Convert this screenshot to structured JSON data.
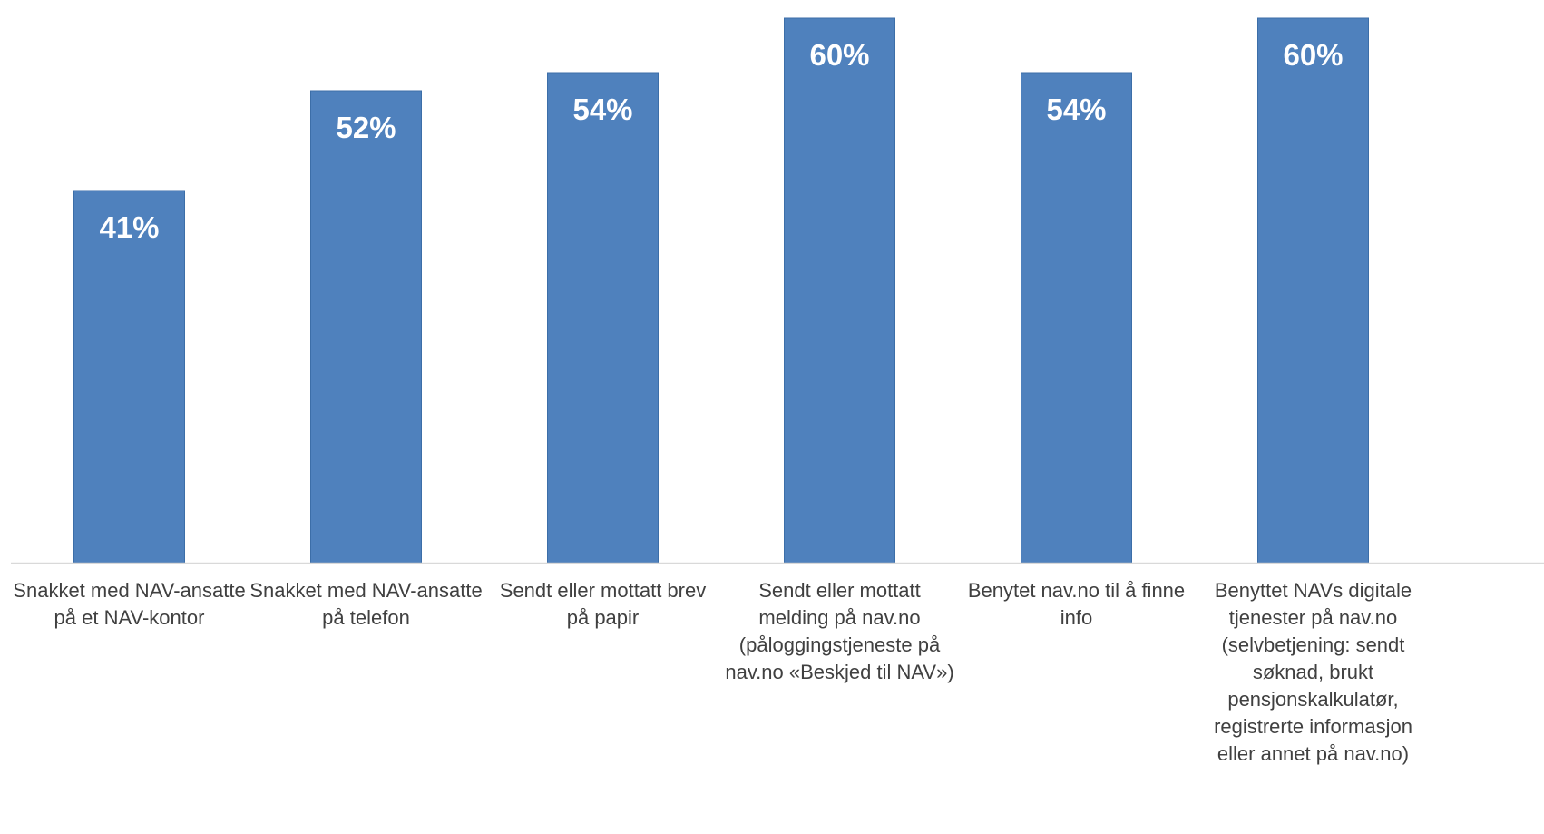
{
  "colors": {
    "bar": "#4F81BD",
    "bar_edge": "#3C6EA8",
    "axis": "#D9D9D9",
    "category_text": "#404040",
    "value_text": "#FFFFFF",
    "background": "#FFFFFF"
  },
  "chart_data": {
    "type": "bar",
    "title": "",
    "xlabel": "",
    "ylabel": "",
    "ylim": [
      0,
      61
    ],
    "grid": false,
    "legend": "none",
    "categories": [
      [
        "Snakket med NAV-ansatte",
        "på et NAV-kontor"
      ],
      [
        "Snakket med NAV-ansatte",
        "på telefon"
      ],
      [
        "Sendt eller mottatt brev",
        "på papir"
      ],
      [
        "Sendt eller mottatt",
        "melding på nav.no",
        "(påloggingstjeneste på",
        "nav.no «Beskjed til NAV»)"
      ],
      [
        "Benytet nav.no til å finne",
        "info"
      ],
      [
        "Benyttet NAVs digitale",
        "tjenester på nav.no",
        "(selvbetjening: sendt",
        "søknad, brukt",
        "pensjonskalkulatør,",
        "registrerte informasjon",
        "eller annet på nav.no)"
      ]
    ],
    "values": [
      41,
      52,
      54,
      60,
      54,
      60
    ],
    "value_labels": [
      "41%",
      "52%",
      "54%",
      "60%",
      "54%",
      "60%"
    ]
  }
}
